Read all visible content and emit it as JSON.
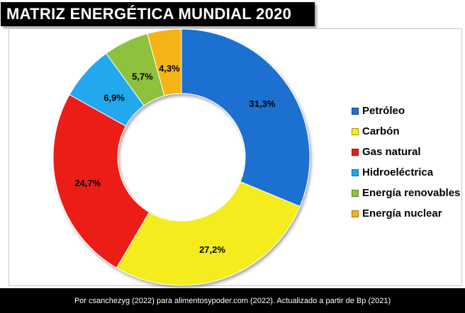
{
  "title": "MATRIZ ENERGÉTICA MUNDIAL 2020",
  "footer": "Por csanchezyg (2022) para alimentosypoder.com (2022). Actualizado a partir de Bp (2021)",
  "chart_data": {
    "type": "pie",
    "subtype": "donut",
    "categories": [
      "Petróleo",
      "Carbón",
      "Gas natural",
      "Hidroeléctrica",
      "Energía renovables",
      "Energía nuclear"
    ],
    "values": [
      31.3,
      27.2,
      24.7,
      6.9,
      5.7,
      4.3
    ],
    "labels": [
      "31,3%",
      "27,2%",
      "24,7%",
      "6,9%",
      "5,7%",
      "4,3%"
    ],
    "colors": [
      "#1f6fd0",
      "#f4ec1c",
      "#ec1c12",
      "#22a8ec",
      "#8fc13c",
      "#f5b416"
    ],
    "legend_position": "right",
    "start": "top, clockwise"
  }
}
